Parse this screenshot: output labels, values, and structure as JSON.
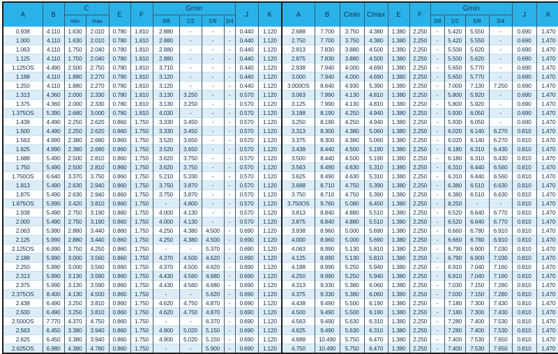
{
  "colors": {
    "header_bg": "#2ab2e8",
    "row_even_bg": "#dcedf8",
    "row_odd_bg": "#fdfeff",
    "grid_line": "#39586d",
    "row_line": "#c6dfec",
    "frame": "#1a1a1a",
    "text": "#12304d"
  },
  "table": {
    "left": {
      "header": {
        "a": "A",
        "b": "B",
        "c_group": "C",
        "c_min": "min",
        "c_max": "max",
        "e": "E",
        "f": "F",
        "g_group": "Gmin",
        "g38": "3/8",
        "g12": "1/2",
        "g58": "5/8",
        "g34": "3/4",
        "j": "J",
        "k": "K"
      },
      "rows": [
        [
          "0.938",
          "4.110",
          "1.630",
          "2.010",
          "0.780",
          "1.810",
          "2.880",
          "-",
          "-",
          "-",
          "0.440",
          "1.120"
        ],
        [
          "1.000",
          "4.110",
          "1.630",
          "2.010",
          "0.780",
          "1.810",
          "2.880",
          "-",
          "-",
          "-",
          "0.440",
          "1.120"
        ],
        [
          "1.063",
          "4.110",
          "1.750",
          "2.040",
          "0.780",
          "1.810",
          "2.880",
          "-",
          "-",
          "-",
          "0.440",
          "1.120"
        ],
        [
          "1.125",
          "4.110",
          "1.750",
          "2.040",
          "0.780",
          "1.810",
          "2.880",
          "-",
          "-",
          "-",
          "0.440",
          "1.120"
        ],
        [
          "1.125OS",
          "4.490",
          "2.500",
          "2.750",
          "0.780",
          "1.810",
          "3.710",
          "-",
          "-",
          "-",
          "0.440",
          "1.120"
        ],
        [
          "1.188",
          "4.110",
          "1.880",
          "2.270",
          "0.780",
          "1.810",
          "3.120",
          "-",
          "-",
          "-",
          "0.440",
          "1.120"
        ],
        [
          "1.250",
          "4.110",
          "1.880",
          "2.270",
          "0.780",
          "1.810",
          "3.120",
          "-",
          "-",
          "-",
          "0.440",
          "1.120"
        ],
        [
          "1.313",
          "4.360",
          "2.000",
          "2.330",
          "0.780",
          "1.810",
          "3.130",
          "3.250",
          "-",
          "-",
          "0.570",
          "1.120"
        ],
        [
          "1.375",
          "4.360",
          "2.000",
          "2.330",
          "0.780",
          "1.810",
          "3.130",
          "3.250",
          "-",
          "-",
          "0.570",
          "1.120"
        ],
        [
          "1.375OS",
          "5.390",
          "2.680",
          "3.000",
          "0.780",
          "1.810",
          "4.030",
          "-",
          "-",
          "-",
          "0.570",
          "1.120"
        ],
        [
          "1.438",
          "4.490",
          "2.250",
          "2.620",
          "0.860",
          "1.750",
          "3.330",
          "3.450",
          "-",
          "-",
          "0.570",
          "1.120"
        ],
        [
          "1.500",
          "4.490",
          "2.250",
          "2.620",
          "0.860",
          "1.750",
          "3.330",
          "3.450",
          "-",
          "-",
          "0.570",
          "1.120"
        ],
        [
          "1.563",
          "4.990",
          "2.380",
          "2.680",
          "0.860",
          "1.750",
          "3.520",
          "3.650",
          "-",
          "-",
          "0.570",
          "1.120"
        ],
        [
          "1.625",
          "4.990",
          "2.380",
          "2.680",
          "0.860",
          "1.750",
          "3.520",
          "3.650",
          "-",
          "-",
          "0.570",
          "1.120"
        ],
        [
          "1.688",
          "5.490",
          "2.500",
          "2.810",
          "0.860",
          "1.750",
          "3.620",
          "3.750",
          "-",
          "-",
          "0.570",
          "1.120"
        ],
        [
          "1.750",
          "5.490",
          "2.500",
          "2.810",
          "0.860",
          "1.750",
          "3.620",
          "3.750",
          "-",
          "-",
          "0.570",
          "1.120"
        ],
        [
          "1.750OS",
          "6.640",
          "3.370",
          "3.750",
          "0.860",
          "1.750",
          "5.210",
          "5.330",
          "-",
          "-",
          "0.570",
          "1.120"
        ],
        [
          "1.813",
          "5.490",
          "2.630",
          "2.940",
          "0.860",
          "1.750",
          "3.750",
          "3.870",
          "-",
          "-",
          "0.570",
          "1.120"
        ],
        [
          "1.875",
          "5.490",
          "2.630",
          "2.940",
          "0.860",
          "1.750",
          "3.750",
          "3.870",
          "-",
          "-",
          "0.570",
          "1.120"
        ],
        [
          "1.875OS",
          "5.990",
          "3.420",
          "3.810",
          "0.860",
          "1.750",
          "-",
          "4.800",
          "-",
          "-",
          "0.570",
          "1.120"
        ],
        [
          "1.938",
          "5.490",
          "2.750",
          "3.190",
          "0.860",
          "1.750",
          "4.000",
          "4.130",
          "-",
          "-",
          "0.570",
          "1.120"
        ],
        [
          "2.000",
          "5.490",
          "2.750",
          "3.190",
          "0.860",
          "1.750",
          "4.000",
          "4.130",
          "-",
          "-",
          "0.570",
          "1.120"
        ],
        [
          "2.063",
          "5.990",
          "2.880",
          "3.440",
          "0.860",
          "1.750",
          "4.250",
          "4.380",
          "4.500",
          "-",
          "0.690",
          "1.120"
        ],
        [
          "2.125",
          "5.990",
          "2.880",
          "3.440",
          "0.860",
          "1.750",
          "4.250",
          "4.380",
          "4.500",
          "-",
          "0.690",
          "1.120"
        ],
        [
          "2.125OS",
          "6.990",
          "3.750",
          "4.250",
          "0.860",
          "1.750",
          "-",
          "-",
          "5.370",
          "-",
          "0.690",
          "1.120"
        ],
        [
          "2.188",
          "5.990",
          "3.000",
          "3.560",
          "0.860",
          "1.750",
          "4.370",
          "4.500",
          "4.620",
          "-",
          "0.690",
          "1.120"
        ],
        [
          "2.250",
          "5.990",
          "3.000",
          "3.560",
          "0.860",
          "1.750",
          "4.370",
          "4.500",
          "4.620",
          "-",
          "0.690",
          "1.120"
        ],
        [
          "2.313",
          "5.990",
          "3.130",
          "3.590",
          "0.860",
          "1.750",
          "4.430",
          "4.560",
          "4.680",
          "-",
          "0.690",
          "1.120"
        ],
        [
          "2.375",
          "5.990",
          "3.130",
          "3.590",
          "0.860",
          "1.750",
          "4.430",
          "4.560",
          "4.680",
          "-",
          "0.690",
          "1.120"
        ],
        [
          "2.375OS",
          "8.400",
          "4.130",
          "4.500",
          "0.860",
          "1.750",
          "-",
          "-",
          "5.620",
          "-",
          "0.690",
          "1.120"
        ],
        [
          "2.438",
          "6.490",
          "3.250",
          "3.810",
          "0.860",
          "1.750",
          "4.620",
          "4.750",
          "4.870",
          "-",
          "0.690",
          "1.120"
        ],
        [
          "2.500",
          "6.490",
          "3.250",
          "3.810",
          "0.860",
          "1.750",
          "4.620",
          "4.750",
          "4.870",
          "-",
          "0.690",
          "1.120"
        ],
        [
          "2.500OS",
          "7.770",
          "4.370",
          "4.750",
          "0.860",
          "1.750",
          "-",
          "-",
          "6.370",
          "-",
          "0.690",
          "1.120"
        ],
        [
          "2.563",
          "6.450",
          "3.380",
          "3.940",
          "0.860",
          "1.750",
          "4.900",
          "5.020",
          "5.150",
          "-",
          "0.690",
          "1.120"
        ],
        [
          "2.625",
          "6.450",
          "3.380",
          "3.940",
          "0.860",
          "1.750",
          "4.900",
          "5.020",
          "5.150",
          "-",
          "0.690",
          "1.120"
        ],
        [
          "2.625OS",
          "6.980",
          "4.380",
          "4.780",
          "0.860",
          "1.750",
          "-",
          "-",
          "5.900",
          "-",
          "0.690",
          "1.120"
        ]
      ]
    },
    "right": {
      "header": {
        "a": "A",
        "b": "B",
        "cmin": "Cmin",
        "cmax": "Cmax",
        "e": "E",
        "f": "F",
        "g_group": "Gmin",
        "g38": "3/8",
        "g12": "1/2",
        "g58": "5/8",
        "g34": "3/4",
        "j": "J",
        "k": "K"
      },
      "rows": [
        [
          "2.688",
          "7.700",
          "3.750",
          "4.380",
          "1.380",
          "2.250",
          "-",
          "5.420",
          "5.550",
          "-",
          "0.690",
          "1.470"
        ],
        [
          "2.750",
          "7.700",
          "3.750",
          "4.380",
          "1.380",
          "2.250",
          "-",
          "5.420",
          "5.550",
          "-",
          "0.690",
          "1.470"
        ],
        [
          "2.813",
          "7.830",
          "3.880",
          "4.500",
          "1.380",
          "2.250",
          "-",
          "5.500",
          "5.620",
          "-",
          "0.690",
          "1.470"
        ],
        [
          "2.875",
          "7.830",
          "3.880",
          "4.500",
          "1.380",
          "2.250",
          "-",
          "5.500",
          "5.620",
          "-",
          "0.690",
          "1.470"
        ],
        [
          "2.938",
          "7.940",
          "4.000",
          "4.690",
          "1.380",
          "2.250",
          "-",
          "5.650",
          "5.770",
          "-",
          "0.690",
          "1.470"
        ],
        [
          "3.000",
          "7.940",
          "4.000",
          "4.690",
          "1.380",
          "2.250",
          "-",
          "5.650",
          "5.770",
          "-",
          "0.690",
          "1.470"
        ],
        [
          "3.000OS",
          "8.640",
          "4.930",
          "5.390",
          "1.380",
          "2.250",
          "-",
          "7.000",
          "7.130",
          "7.250",
          "0.690",
          "1.470"
        ],
        [
          "3.063",
          "7.990",
          "4.130",
          "4.810",
          "1.380",
          "2.250",
          "-",
          "5.800",
          "5.920",
          "-",
          "0.690",
          "1.470"
        ],
        [
          "3.125",
          "7.990",
          "4.130",
          "4.810",
          "1.380",
          "2.250",
          "-",
          "5.800",
          "5.920",
          "-",
          "0.690",
          "1.470"
        ],
        [
          "3.188",
          "8.190",
          "4.250",
          "4.940",
          "1.380",
          "2.250",
          "-",
          "5.930",
          "6.050",
          "-",
          "0.690",
          "1.470"
        ],
        [
          "3.250",
          "8.190",
          "4.250",
          "4.940",
          "1.380",
          "2.250",
          "-",
          "5.930",
          "6.050",
          "-",
          "0.690",
          "1.470"
        ],
        [
          "3.313",
          "8.300",
          "4.380",
          "5.060",
          "1.380",
          "2.250",
          "-",
          "6.020",
          "6.140",
          "6.270",
          "0.810",
          "1.470"
        ],
        [
          "3.375",
          "8.300",
          "4.380",
          "5.060",
          "1.380",
          "2.250",
          "-",
          "6.020",
          "6.140",
          "6.270",
          "0.810",
          "1.470"
        ],
        [
          "3.438",
          "8.440",
          "4.500",
          "5.190",
          "1.380",
          "2.250",
          "-",
          "6.180",
          "6.310",
          "6.430",
          "0.810",
          "1.470"
        ],
        [
          "3.500",
          "8.440",
          "4.500",
          "5.190",
          "1.380",
          "2.250",
          "-",
          "6.180",
          "6.310",
          "6.430",
          "0.810",
          "1.470"
        ],
        [
          "3.563",
          "8.490",
          "4.630",
          "5.310",
          "1.380",
          "2.250",
          "-",
          "6.310",
          "6.440",
          "6.560",
          "0.810",
          "1.470"
        ],
        [
          "3.625",
          "8.490",
          "4.630",
          "5.310",
          "1.380",
          "2.250",
          "-",
          "6.310",
          "6.440",
          "6.560",
          "0.810",
          "1.470"
        ],
        [
          "3.688",
          "8.710",
          "4.750",
          "5.390",
          "1.380",
          "2.250",
          "-",
          "6.380",
          "6.510",
          "6.630",
          "0.810",
          "1.470"
        ],
        [
          "3.750",
          "8.710",
          "4.750",
          "5.390",
          "1.380",
          "2.250",
          "-",
          "6.380",
          "6.510",
          "6.630",
          "0.810",
          "1.470"
        ],
        [
          "3.750OS",
          "9.760",
          "5.080",
          "6.400",
          "1.380",
          "2.250",
          "-",
          "8.250",
          "-",
          "-",
          "0.810",
          "1.470"
        ],
        [
          "3.813",
          "8.840",
          "4.880",
          "5.510",
          "1.380",
          "2.250",
          "-",
          "6.520",
          "6.640",
          "6.770",
          "0.810",
          "1.470"
        ],
        [
          "3.875",
          "8.840",
          "4.880",
          "5.510",
          "1.380",
          "2.250",
          "-",
          "6.520",
          "6.640",
          "6.770",
          "0.810",
          "1.470"
        ],
        [
          "3.938",
          "8.960",
          "5.000",
          "5.690",
          "1.380",
          "2.250",
          "-",
          "6.660",
          "6.780",
          "6.910",
          "0.810",
          "1.470"
        ],
        [
          "4.000",
          "8.960",
          "5.000",
          "5.690",
          "1.380",
          "2.250",
          "-",
          "6.660",
          "6.780",
          "6.910",
          "0.810",
          "1.470"
        ],
        [
          "4.063",
          "8.990",
          "5.130",
          "5.810",
          "1.380",
          "2.250",
          "-",
          "6.790",
          "6.900",
          "7.030",
          "0.810",
          "1.470"
        ],
        [
          "4.125",
          "8.990",
          "5.130",
          "5.810",
          "1.380",
          "2.250",
          "-",
          "6.790",
          "6.900",
          "7.030",
          "0.810",
          "1.470"
        ],
        [
          "4.188",
          "8.990",
          "5.250",
          "5.940",
          "1.380",
          "2.250",
          "-",
          "6.910",
          "7.040",
          "7.160",
          "0.810",
          "1.470"
        ],
        [
          "4.250",
          "8.990",
          "5.250",
          "5.940",
          "1.380",
          "2.250",
          "-",
          "6.910",
          "7.040",
          "7.160",
          "0.810",
          "1.470"
        ],
        [
          "4.313",
          "9.330",
          "5.380",
          "6.060",
          "1.380",
          "2.250",
          "-",
          "7.030",
          "7.150",
          "7.280",
          "0.810",
          "1.470"
        ],
        [
          "4.375",
          "9.330",
          "5.380",
          "6.060",
          "1.380",
          "2.250",
          "-",
          "7.030",
          "7.150",
          "7.280",
          "0.810",
          "1.470"
        ],
        [
          "4.438",
          "9.490",
          "5.500",
          "6.190",
          "1.380",
          "2.250",
          "-",
          "7.180",
          "7.300",
          "7.430",
          "0.810",
          "1.470"
        ],
        [
          "4.500",
          "9.490",
          "5.500",
          "6.190",
          "1.380",
          "2.250",
          "-",
          "7.180",
          "7.300",
          "7.430",
          "0.810",
          "1.470"
        ],
        [
          "4.563",
          "9.490",
          "5.630",
          "6.310",
          "1.380",
          "2.250",
          "-",
          "7.280",
          "7.400",
          "7.530",
          "0.810",
          "1.470"
        ],
        [
          "4.625",
          "9.490",
          "5.630",
          "6.310",
          "1.380",
          "2.250",
          "-",
          "7.280",
          "7.400",
          "7.530",
          "0.810",
          "1.470"
        ],
        [
          "4.688",
          "10.490",
          "5.750",
          "6.470",
          "1.380",
          "2.250",
          "-",
          "7.400",
          "7.530",
          "7.650",
          "0.810",
          "1.470"
        ],
        [
          "4.750",
          "10.490",
          "5.750",
          "6.470",
          "1.380",
          "2.250",
          "-",
          "7.400",
          "7.530",
          "7.650",
          "0.810",
          "1.470"
        ]
      ]
    }
  }
}
